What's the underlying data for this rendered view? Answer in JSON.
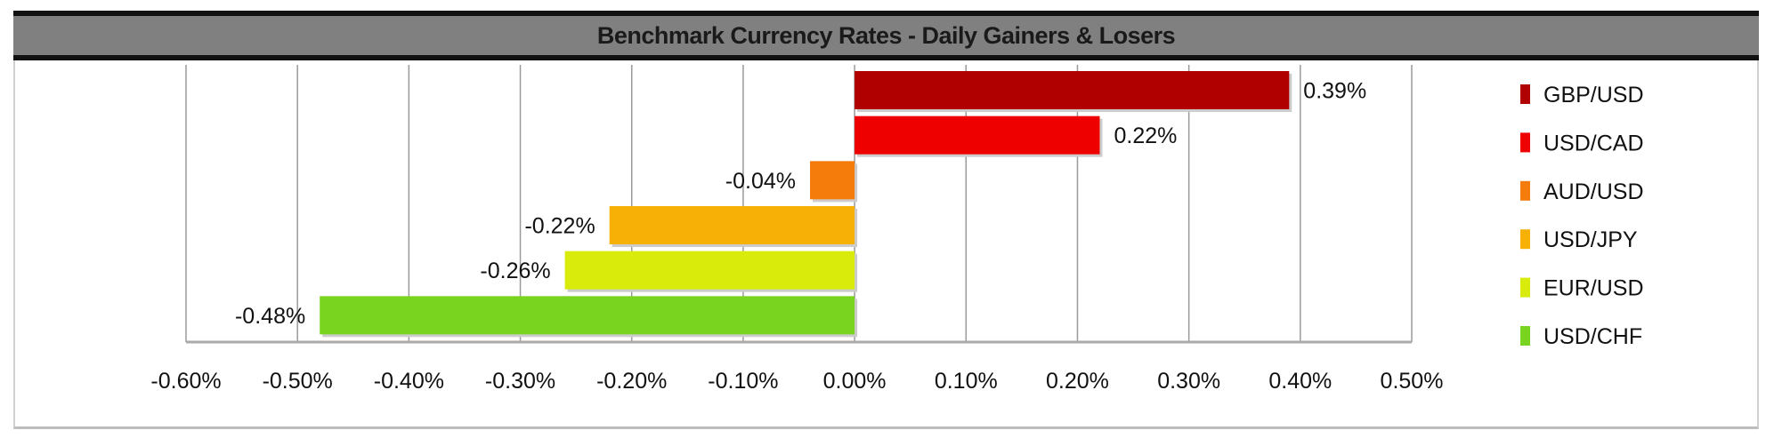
{
  "chart_data": {
    "type": "bar",
    "orientation": "horizontal",
    "title": "Benchmark Currency Rates - Daily Gainers & Losers",
    "categories": [
      "GBP/USD",
      "USD/CAD",
      "AUD/USD",
      "USD/JPY",
      "EUR/USD",
      "USD/CHF"
    ],
    "values": [
      0.39,
      0.22,
      -0.04,
      -0.22,
      -0.26,
      -0.48
    ],
    "data_labels": [
      "0.39%",
      "0.22%",
      "-0.04%",
      "-0.22%",
      "-0.26%",
      "-0.48%"
    ],
    "colors": [
      "#b00000",
      "#ee0000",
      "#f57c0a",
      "#f7b006",
      "#d8eb0a",
      "#78d41e"
    ],
    "xlim": [
      -0.6,
      0.5
    ],
    "x_ticks": [
      -0.6,
      -0.5,
      -0.4,
      -0.3,
      -0.2,
      -0.1,
      0,
      0.1,
      0.2,
      0.3,
      0.4,
      0.5
    ],
    "x_tick_labels": [
      "-0.60%",
      "-0.50%",
      "-0.40%",
      "-0.30%",
      "-0.20%",
      "-0.10%",
      "0.00%",
      "0.10%",
      "0.20%",
      "0.30%",
      "0.40%",
      "0.50%"
    ],
    "xlabel": "",
    "ylabel": "",
    "grid": "vertical",
    "legend": "right"
  }
}
